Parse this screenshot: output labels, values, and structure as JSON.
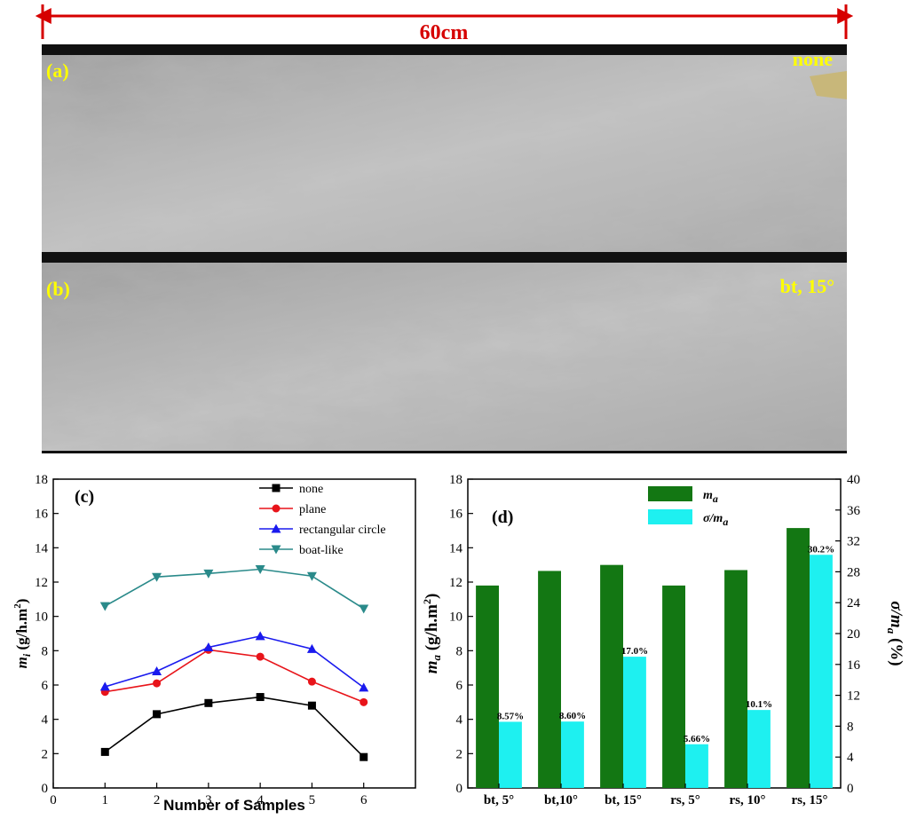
{
  "scale_bar": {
    "label": "60cm",
    "color": "#d60000"
  },
  "photos": [
    {
      "tag": "(a)",
      "condition": "none"
    },
    {
      "tag": "(b)",
      "condition": "bt, 15°"
    }
  ],
  "chart_data": [
    {
      "type": "line",
      "tag": "(c)",
      "xlabel": "Number of Samples",
      "ylabel": "m",
      "ylabel_sub": "i",
      "ylabel_unit": " (g/h.m",
      "ylabel_sup": "2",
      "ylabel_close": ")",
      "xlim": [
        0,
        7
      ],
      "ylim": [
        0,
        18
      ],
      "xticks": [
        0,
        1,
        2,
        3,
        4,
        5,
        6
      ],
      "yticks": [
        0,
        2,
        4,
        6,
        8,
        10,
        12,
        14,
        16,
        18
      ],
      "legend_position": "top-right",
      "grid": false,
      "x": [
        1,
        2,
        3,
        4,
        5,
        6
      ],
      "series": [
        {
          "name": "none",
          "color": "#000000",
          "marker": "square",
          "values": [
            2.1,
            4.3,
            4.95,
            5.3,
            4.8,
            1.8
          ]
        },
        {
          "name": "plane",
          "color": "#e8141a",
          "marker": "circle",
          "values": [
            5.6,
            6.1,
            8.05,
            7.65,
            6.2,
            5.0
          ]
        },
        {
          "name": "rectangular circle",
          "color": "#1a1aee",
          "marker": "triangle-up",
          "values": [
            5.9,
            6.8,
            8.2,
            8.85,
            8.1,
            5.85
          ]
        },
        {
          "name": "boat-like",
          "color": "#2a8a8a",
          "marker": "triangle-down",
          "values": [
            10.6,
            12.3,
            12.5,
            12.75,
            12.35,
            10.45
          ]
        }
      ]
    },
    {
      "type": "bar",
      "tag": "(d)",
      "categories": [
        "bt, 5°",
        "bt,10°",
        "bt, 15°",
        "rs, 5°",
        "rs, 10°",
        "rs, 15°"
      ],
      "ylabel": "m",
      "ylabel_sub": "a",
      "ylabel_unit": " (g/h.m",
      "ylabel_sup": "2",
      "ylabel_close": ")",
      "y2label": "σ/m",
      "y2label_sub": "a",
      "y2label_unit": " (%)",
      "ylim": [
        0,
        18
      ],
      "y2lim": [
        0,
        40
      ],
      "yticks": [
        0,
        2,
        4,
        6,
        8,
        10,
        12,
        14,
        16,
        18
      ],
      "y2ticks": [
        0,
        4,
        8,
        12,
        16,
        20,
        24,
        28,
        32,
        36,
        40
      ],
      "legend_position": "top-left",
      "series": [
        {
          "legend_main": "m",
          "legend_sub": "a",
          "color": "#137713",
          "axis": "left",
          "values": [
            11.8,
            12.65,
            13.0,
            11.8,
            12.7,
            15.15
          ]
        },
        {
          "legend_main": "σ/m",
          "legend_sub": "a",
          "color": "#1ef0f0",
          "axis": "right",
          "values": [
            8.57,
            8.6,
            17.0,
            5.66,
            10.1,
            30.2
          ],
          "labels": [
            "8.57%",
            "8.60%",
            "17.0%",
            "5.66%",
            "10.1%",
            "30.2%"
          ]
        }
      ]
    }
  ]
}
